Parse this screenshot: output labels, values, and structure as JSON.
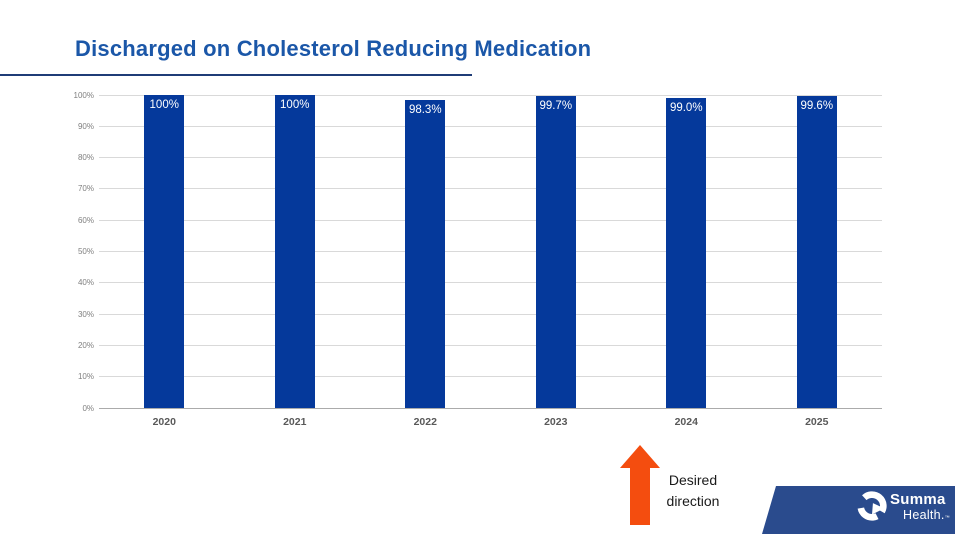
{
  "slide": {
    "title": "Discharged on Cholesterol Reducing Medication"
  },
  "chart_data": {
    "type": "bar",
    "title": "Discharged on Cholesterol Reducing Medication",
    "categories": [
      "2020",
      "2021",
      "2022",
      "2023",
      "2024",
      "2025"
    ],
    "values": [
      100,
      100,
      98.3,
      99.7,
      99.0,
      99.6
    ],
    "value_labels": [
      "100%",
      "100%",
      "98.3%",
      "99.7%",
      "99.0%",
      "99.6%"
    ],
    "xlabel": "",
    "ylabel": "",
    "ylim": [
      0,
      100
    ],
    "ytick_step": 10,
    "ytick_suffix": "%",
    "ytick_labels": [
      "0%",
      "10%",
      "20%",
      "30%",
      "40%",
      "50%",
      "60%",
      "70%",
      "80%",
      "90%",
      "100%"
    ],
    "grid": true,
    "legend": "none",
    "bar_color": "#05399B",
    "value_label_color": "#FFFFFF"
  },
  "annotation": {
    "label": "Desired direction",
    "arrow_icon": "up-arrow-icon",
    "arrow_color": "#F44D0F"
  },
  "brand": {
    "line1": "Summa",
    "line2": "Health.",
    "tm": "™",
    "ribbon_color": "#2A4B8D",
    "logo_icon": "summa-health-logo-icon"
  },
  "colors": {
    "title": "#1B57A8",
    "title_underline": "#1F3C77",
    "gridline": "#D9D9D9",
    "axis_line": "#ABABAB",
    "ytick_text": "#7F7F7F",
    "xtick_text": "#595959",
    "annotation_text": "#1A1A1A"
  }
}
